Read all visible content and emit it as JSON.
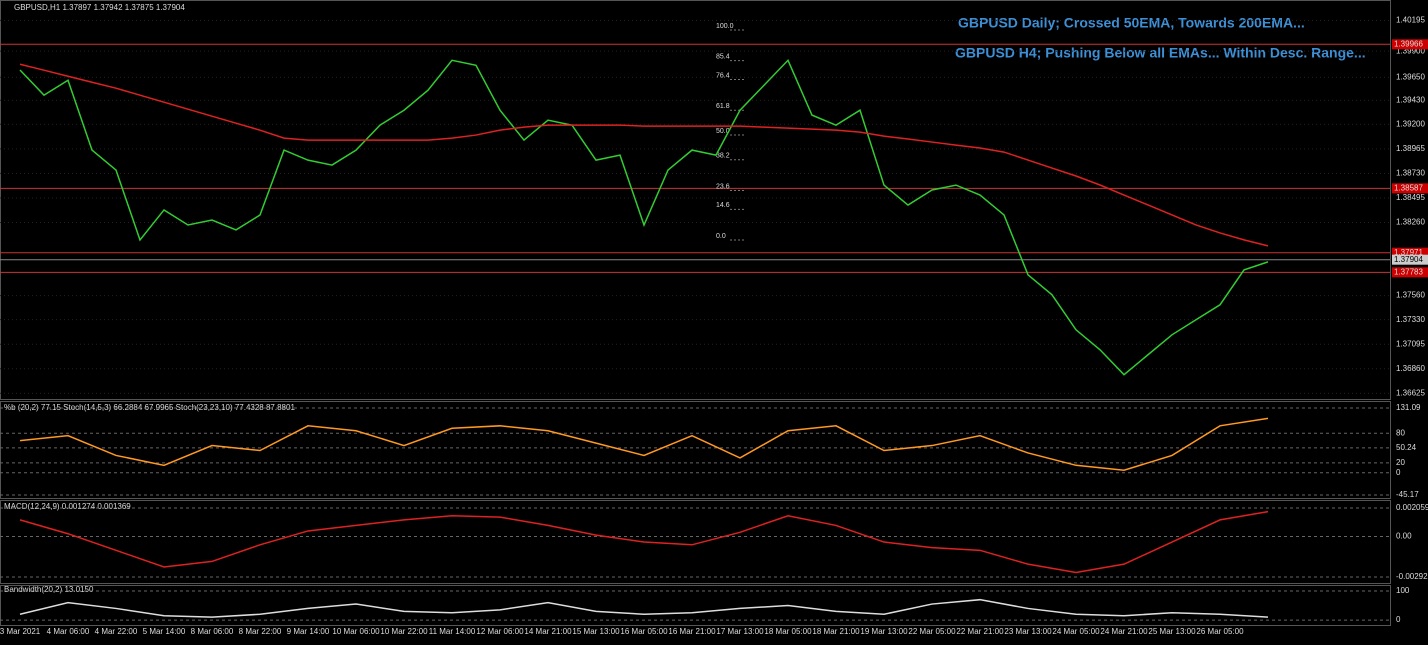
{
  "chart_data": [
    {
      "type": "line",
      "title": "GBPUSD,H1 1.37897 1.37942 1.37875 1.37904",
      "annotations": [
        "GBPUSD Daily; Crossed 50EMA, Towards 200EMA...",
        "GBPUSD H4; Pushing Below all EMAs... Within Desc. Range..."
      ],
      "categories": [
        "3 Mar 2021",
        null,
        "4 Mar 06:00",
        null,
        "4 Mar 22:00",
        null,
        "5 Mar 14:00",
        null,
        "8 Mar 06:00",
        null,
        "8 Mar 22:00",
        null,
        "9 Mar 14:00",
        null,
        "10 Mar 06:00",
        null,
        "10 Mar 22:00",
        null,
        "11 Mar 14:00",
        null,
        "12 Mar 06:00",
        null,
        "14 Mar 21:00",
        null,
        "15 Mar 13:00",
        null,
        "16 Mar 05:00",
        null,
        "16 Mar 21:00",
        null,
        "17 Mar 13:00",
        null,
        "18 Mar 05:00",
        null,
        "18 Mar 21:00",
        null,
        "19 Mar 13:00",
        null,
        "22 Mar 05:00",
        null,
        "22 Mar 21:00",
        null,
        "23 Mar 13:00",
        null,
        "24 Mar 05:00",
        null,
        "24 Mar 21:00",
        null,
        "25 Mar 13:00",
        null,
        "26 Mar 05:00",
        null,
        null
      ],
      "series": [
        {
          "color": "#33cc33",
          "values": [
            1.3972,
            1.39479,
            1.39622,
            1.38953,
            1.38762,
            1.38093,
            1.3838,
            1.38236,
            1.38284,
            1.38189,
            1.38332,
            1.38953,
            1.38857,
            1.3881,
            1.38953,
            1.39192,
            1.39335,
            1.39526,
            1.39813,
            1.39765,
            1.39335,
            1.39049,
            1.3924,
            1.39192,
            1.38857,
            1.38905,
            1.38236,
            1.38762,
            1.38953,
            1.38905,
            1.39335,
            1.39574,
            1.39813,
            1.39288,
            1.39192,
            1.39335,
            1.38618,
            1.38427,
            1.38571,
            1.38618,
            1.38523,
            1.38332,
            1.37759,
            1.37568,
            1.37233,
            1.37042,
            1.36803,
            1.36994,
            1.37185,
            1.37329,
            1.37472,
            1.37806,
            1.37883
          ]
        },
        {
          "color": "#dd2222",
          "values": [
            1.39775,
            1.39718,
            1.3966,
            1.39603,
            1.39546,
            1.39479,
            1.39412,
            1.39345,
            1.39278,
            1.39211,
            1.39144,
            1.39068,
            1.39049,
            1.39049,
            1.39049,
            1.39049,
            1.39049,
            1.39049,
            1.39068,
            1.39097,
            1.39144,
            1.39173,
            1.39192,
            1.39192,
            1.39192,
            1.39192,
            1.39183,
            1.39183,
            1.39183,
            1.39183,
            1.39183,
            1.39173,
            1.39164,
            1.39154,
            1.39144,
            1.39125,
            1.39087,
            1.39059,
            1.3903,
            1.39001,
            1.38973,
            1.38934,
            1.38858,
            1.38781,
            1.38705,
            1.38619,
            1.38523,
            1.38428,
            1.38332,
            1.38237,
            1.3816,
            1.38094,
            1.38036
          ]
        }
      ],
      "ylim": [
        1.3658,
        1.4039
      ],
      "yticks": [
        1.40195,
        {
          "value": 1.399,
          "label": "1.39900"
        },
        {
          "value": 1.3965,
          "label": "1.39650"
        },
        {
          "value": 1.3943,
          "label": "1.39430"
        },
        {
          "value": 1.392,
          "label": "1.39200"
        },
        1.38965,
        {
          "value": 1.3873,
          "label": "1.38730"
        },
        1.38495,
        {
          "value": 1.3826,
          "label": "1.38260"
        },
        {
          "value": 1.3756,
          "label": "1.37560"
        },
        {
          "value": 1.3733,
          "label": "1.37330"
        },
        1.37095,
        {
          "value": 1.3686,
          "label": "1.36860"
        },
        1.36625
      ],
      "levels": [
        1.39966,
        1.38587,
        1.37971,
        1.37783
      ],
      "last": 1.37904,
      "fib_levels": [
        {
          "value": 100,
          "label": "100.0"
        },
        85.4,
        76.4,
        61.8,
        {
          "value": 50,
          "label": "50.0"
        },
        38.2,
        23.6,
        14.6,
        {
          "value": 0,
          "label": "0.0"
        }
      ]
    },
    {
      "type": "line",
      "title": "%b (20,2) 77.15  Stoch(14,5,3) 66.2884 67.9965  Stoch(23,23,10) 77.4328 87.8801",
      "series": [
        {
          "color": "#ff9922",
          "values": [
            65,
            75,
            35,
            15,
            55,
            45,
            95,
            85,
            55,
            90,
            95,
            85,
            60,
            35,
            75,
            30,
            85,
            95,
            45,
            55,
            75,
            40,
            15,
            5,
            35,
            95,
            110
          ]
        }
      ],
      "ylim": [
        -45.17,
        131.09
      ],
      "yticks": [
        131.09,
        80,
        50.24,
        20,
        0,
        -45.17
      ]
    },
    {
      "type": "line",
      "title": "MACD(12,24,9) 0.001274 0.001369",
      "series": [
        {
          "color": "#dd2222",
          "values": [
            0.0012,
            0.0002,
            -0.001,
            -0.0022,
            -0.0018,
            -0.0006,
            0.0004,
            0.0008,
            0.0012,
            0.0015,
            0.0014,
            0.0008,
            0.0001,
            -0.0004,
            -0.0006,
            0.0003,
            0.0015,
            0.0008,
            -0.0004,
            -0.0008,
            -0.001,
            -0.002,
            -0.0026,
            -0.002,
            -0.0004,
            0.0012,
            0.0018
          ]
        }
      ],
      "ylim": [
        -0.00336,
        0.00242
      ],
      "yticks": [
        0.002059,
        {
          "value": 0,
          "label": "0.00"
        },
        -0.002929
      ]
    },
    {
      "type": "line",
      "title": "Bandwidth(20,2) 13.0150",
      "series": [
        {
          "color": "#dddddd",
          "values": [
            20,
            60,
            40,
            15,
            10,
            20,
            40,
            55,
            30,
            25,
            35,
            60,
            30,
            20,
            25,
            40,
            50,
            30,
            20,
            55,
            70,
            40,
            20,
            15,
            25,
            20,
            10
          ]
        }
      ],
      "ylim": [
        -10,
        117
      ],
      "yticks": [
        100,
        0
      ]
    }
  ]
}
